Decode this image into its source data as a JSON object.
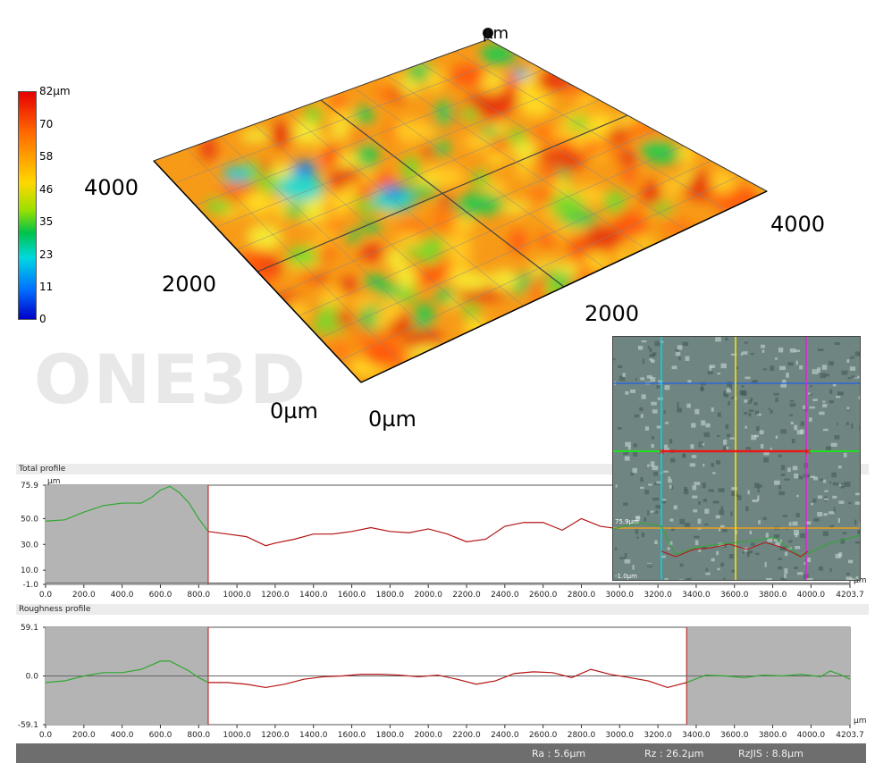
{
  "surface": {
    "unit_label": "µm",
    "watermark": "ONE3D",
    "colorbar_ticks": [
      "82µm",
      "70",
      "58",
      "46",
      "35",
      "23",
      "11",
      "0"
    ],
    "left_axis_ticks": [
      "4000",
      "2000",
      "0µm"
    ],
    "right_axis_ticks": [
      "4000",
      "2000",
      "0µm"
    ],
    "colors": {
      "high": "#e80000",
      "mid": "#ffd800",
      "low": "#0000c8"
    }
  },
  "inset": {
    "label_top": "75.9µm",
    "label_bottom": "-1.0µm",
    "line_colors": [
      "#00d8e8",
      "#ffe800",
      "#e020e0",
      "#2a66d8",
      "#22dd22",
      "#e8a020",
      "#e81818"
    ]
  },
  "chart_data": [
    {
      "type": "line",
      "title": "Total profile",
      "ylabel": "µm",
      "xlabel": "µm",
      "ylim": [
        -1.0,
        75.9
      ],
      "xlim": [
        0,
        4203.7
      ],
      "yticks": [
        "75.9",
        "50.0",
        "30.0",
        "10.0",
        "-1.0"
      ],
      "ytick_values": [
        75.9,
        50.0,
        30.0,
        10.0,
        -1.0
      ],
      "xticks": [
        "0.0",
        "200.0",
        "400.0",
        "600.0",
        "800.0",
        "1000.0",
        "1200.0",
        "1400.0",
        "1600.0",
        "1800.0",
        "2000.0",
        "2200.0",
        "2400.0",
        "2600.0",
        "2800.0",
        "3000.0",
        "3200.0",
        "3400.0",
        "3600.0",
        "3800.0",
        "4000.0",
        "4203.7"
      ],
      "shaded_ranges": [
        [
          0,
          850
        ]
      ],
      "series": [
        {
          "color": "#2fa832",
          "x": [
            0,
            100,
            200,
            300,
            400,
            500,
            550,
            600,
            650,
            700,
            750,
            800,
            850
          ],
          "y": [
            48,
            49,
            55,
            60,
            62,
            62,
            66,
            72,
            75,
            70,
            62,
            50,
            40
          ]
        },
        {
          "color": "#b41414",
          "x": [
            850,
            950,
            1050,
            1150,
            1200,
            1300,
            1400,
            1500,
            1600,
            1700,
            1800,
            1900,
            2000,
            2100,
            2200,
            2300,
            2400,
            2500,
            2600,
            2700,
            2800,
            2900,
            3000
          ],
          "y": [
            40,
            38,
            36,
            29,
            31,
            34,
            38,
            38,
            40,
            43,
            40,
            39,
            42,
            38,
            32,
            34,
            44,
            47,
            47,
            41,
            50,
            44,
            42
          ]
        }
      ]
    },
    {
      "type": "line",
      "title": "Roughness profile",
      "xlabel": "µm",
      "ylim": [
        -59.1,
        59.1
      ],
      "xlim": [
        0,
        4203.7
      ],
      "yticks": [
        "59.1",
        "0.0",
        "-59.1"
      ],
      "ytick_values": [
        59.1,
        0.0,
        -59.1
      ],
      "xticks": [
        "0.0",
        "200.0",
        "400.0",
        "600.0",
        "800.0",
        "1000.0",
        "1200.0",
        "1400.0",
        "1600.0",
        "1800.0",
        "2000.0",
        "2200.0",
        "2400.0",
        "2600.0",
        "2800.0",
        "3000.0",
        "3200.0",
        "3400.0",
        "3600.0",
        "3800.0",
        "4000.0",
        "4203.7"
      ],
      "shaded_ranges": [
        [
          0,
          850
        ],
        [
          3350,
          4203.7
        ]
      ],
      "series": [
        {
          "color": "#2fa832",
          "x": [
            0,
            100,
            200,
            300,
            400,
            500,
            600,
            650,
            700,
            750,
            800,
            850
          ],
          "y": [
            -8,
            -6,
            0,
            4,
            4,
            8,
            18,
            18,
            12,
            6,
            -2,
            -8
          ]
        },
        {
          "color": "#b41414",
          "x": [
            850,
            950,
            1050,
            1150,
            1250,
            1350,
            1450,
            1550,
            1650,
            1750,
            1850,
            1950,
            2050,
            2150,
            2250,
            2350,
            2450,
            2550,
            2650,
            2750,
            2850,
            2950,
            3050,
            3150,
            3250,
            3350
          ],
          "y": [
            -8,
            -8,
            -10,
            -14,
            -10,
            -4,
            -1,
            0,
            2,
            2,
            1,
            -1,
            1,
            -4,
            -10,
            -6,
            3,
            5,
            4,
            -2,
            8,
            2,
            -2,
            -6,
            -14,
            -8
          ]
        },
        {
          "color": "#2fa832",
          "x": [
            3350,
            3450,
            3550,
            3650,
            3750,
            3850,
            3950,
            4050,
            4100,
            4150,
            4203.7
          ],
          "y": [
            -8,
            1,
            0,
            -2,
            1,
            0,
            2,
            -1,
            6,
            2,
            -4
          ]
        }
      ]
    }
  ],
  "status": {
    "ra": "Ra : 5.6µm",
    "rz": "Rz : 26.2µm",
    "rzjis": "RzJIS : 8.8µm"
  }
}
